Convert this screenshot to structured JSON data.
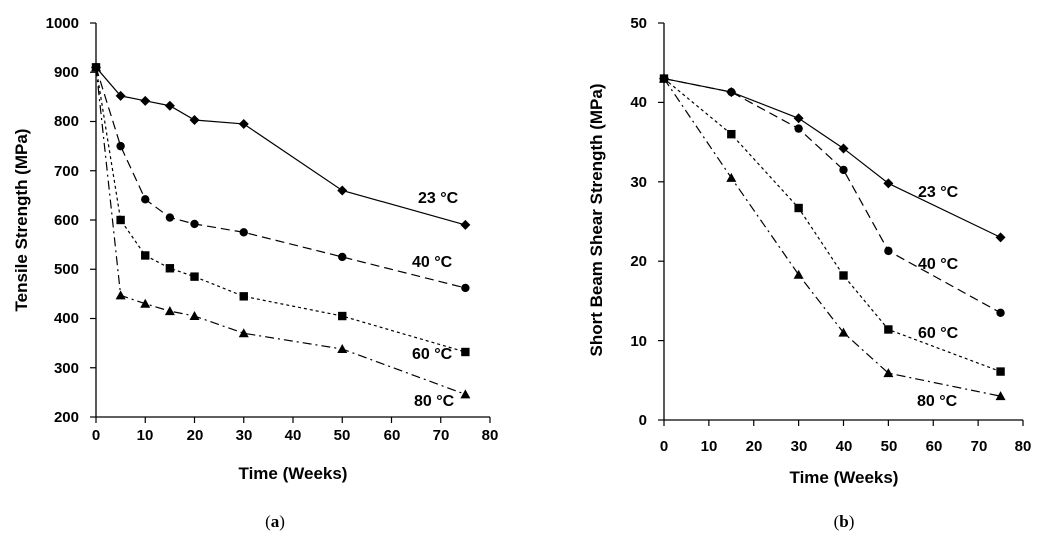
{
  "chart_data": [
    {
      "type": "line",
      "caption_prefix": "(",
      "caption_letter": "a",
      "caption_suffix": ")",
      "xlabel": "Time (Weeks)",
      "ylabel": "Tensile Strength (MPa)",
      "xlim": [
        0,
        80
      ],
      "ylim": [
        200,
        1000
      ],
      "xticks": [
        "0",
        "10",
        "20",
        "30",
        "40",
        "50",
        "60",
        "70",
        "80"
      ],
      "yticks": [
        "200",
        "300",
        "400",
        "500",
        "600",
        "700",
        "800",
        "900",
        "1000"
      ],
      "grid": false,
      "series": [
        {
          "name": "23 °C",
          "marker": "diamond",
          "dash": "solid",
          "x": [
            0,
            5,
            10,
            15,
            20,
            30,
            50,
            75
          ],
          "y": [
            910,
            852,
            842,
            832,
            803,
            795,
            660,
            590
          ]
        },
        {
          "name": "40 °C",
          "marker": "circle",
          "dash": "dash",
          "x": [
            0,
            5,
            10,
            15,
            20,
            30,
            50,
            75
          ],
          "y": [
            910,
            750,
            642,
            605,
            592,
            575,
            525,
            462
          ]
        },
        {
          "name": "60 °C",
          "marker": "square",
          "dash": "dot",
          "x": [
            0,
            5,
            10,
            15,
            20,
            30,
            50,
            75
          ],
          "y": [
            910,
            600,
            528,
            502,
            485,
            445,
            405,
            332
          ]
        },
        {
          "name": "80 °C",
          "marker": "triangle",
          "dash": "dashdot",
          "x": [
            0,
            5,
            10,
            15,
            20,
            30,
            50,
            75
          ],
          "y": [
            910,
            447,
            430,
            415,
            405,
            370,
            338,
            246
          ]
        }
      ]
    },
    {
      "type": "line",
      "caption_prefix": "(",
      "caption_letter": "b",
      "caption_suffix": ")",
      "xlabel": "Time (Weeks)",
      "ylabel": "Short Beam Shear Strength (MPa)",
      "xlim": [
        0,
        80
      ],
      "ylim": [
        0,
        50
      ],
      "xticks": [
        "0",
        "10",
        "20",
        "30",
        "40",
        "50",
        "60",
        "70",
        "80"
      ],
      "yticks": [
        "0",
        "10",
        "20",
        "30",
        "40",
        "50"
      ],
      "grid": false,
      "series": [
        {
          "name": "23 °C",
          "marker": "diamond",
          "dash": "solid",
          "x": [
            0,
            15,
            30,
            40,
            50,
            75
          ],
          "y": [
            43,
            41.3,
            38,
            34.2,
            29.8,
            23
          ]
        },
        {
          "name": "40 °C",
          "marker": "circle",
          "dash": "dash",
          "x": [
            0,
            15,
            30,
            40,
            50,
            75
          ],
          "y": [
            43,
            41.3,
            36.7,
            31.5,
            21.3,
            13.5
          ]
        },
        {
          "name": "60 °C",
          "marker": "square",
          "dash": "dot",
          "x": [
            0,
            15,
            30,
            40,
            50,
            75
          ],
          "y": [
            43,
            36,
            26.7,
            18.2,
            11.4,
            6.1
          ]
        },
        {
          "name": "80 °C",
          "marker": "triangle",
          "dash": "dashdot",
          "x": [
            0,
            15,
            30,
            40,
            50,
            75
          ],
          "y": [
            43,
            30.5,
            18.3,
            11,
            5.9,
            3
          ]
        }
      ]
    }
  ]
}
